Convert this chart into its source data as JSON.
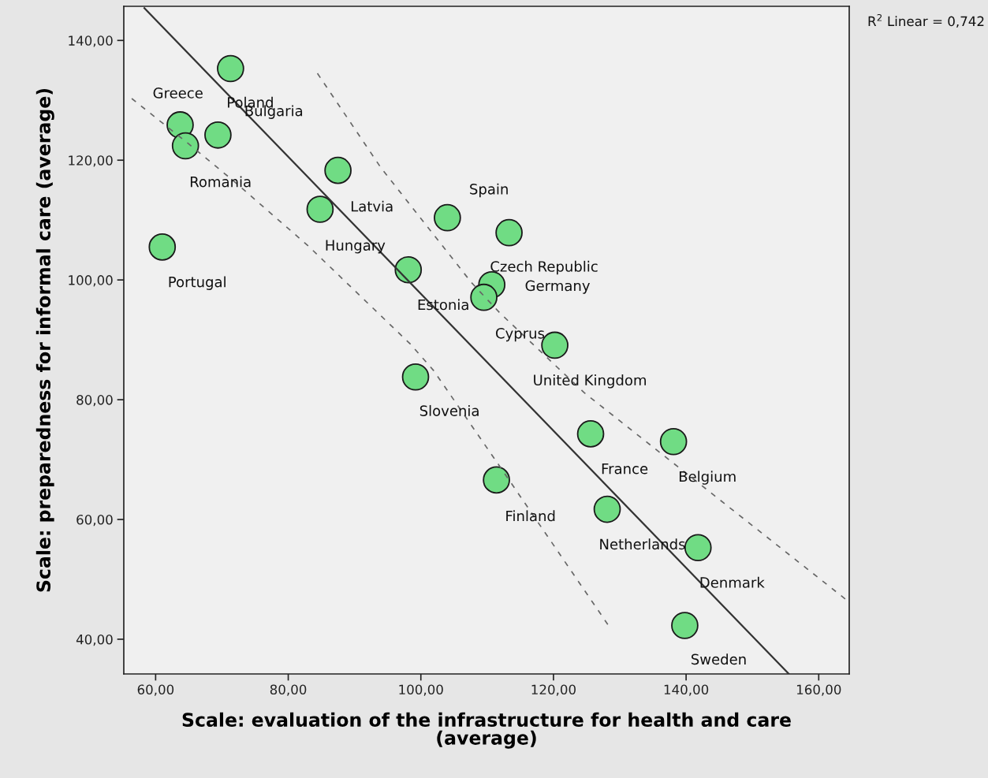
{
  "chart_data": {
    "type": "scatter",
    "xlabel": "Scale: evaluation of the infrastructure for health and care\n(average)",
    "ylabel": "Scale: preparedness for informal care (average)",
    "xlim": [
      55.2,
      164.6
    ],
    "ylim": [
      34.2,
      145.7
    ],
    "xticks": [
      {
        "value": 60,
        "label": "60,00"
      },
      {
        "value": 80,
        "label": "80,00"
      },
      {
        "value": 100,
        "label": "100,00"
      },
      {
        "value": 120,
        "label": "120,00"
      },
      {
        "value": 140,
        "label": "140,00"
      },
      {
        "value": 160,
        "label": "160,00"
      }
    ],
    "yticks": [
      {
        "value": 40,
        "label": "40,00"
      },
      {
        "value": 60,
        "label": "60,00"
      },
      {
        "value": 80,
        "label": "80,00"
      },
      {
        "value": 100,
        "label": "100,00"
      },
      {
        "value": 120,
        "label": "120,00"
      },
      {
        "value": 140,
        "label": "140,00"
      }
    ],
    "grid": false,
    "series": [
      {
        "color": "#70dc84",
        "marker": "circle",
        "x": [
          71.3,
          63.7,
          69.4,
          64.5,
          87.5,
          84.8,
          104.0,
          113.3,
          61.0,
          98.1,
          110.7,
          109.5,
          120.2,
          99.2,
          125.6,
          138.1,
          111.4,
          128.1,
          141.8,
          139.8
        ],
        "values": [
          135.3,
          125.9,
          124.2,
          122.4,
          118.3,
          111.8,
          110.4,
          107.9,
          105.5,
          101.7,
          99.2,
          97.1,
          89.1,
          83.8,
          74.3,
          73.0,
          66.6,
          61.7,
          55.3,
          42.3
        ]
      },
      {
        "type": "line",
        "color": "#333333",
        "line_style": "solid",
        "x": [
          58.3,
          155.5
        ],
        "values": [
          145.4,
          34.2
        ]
      },
      {
        "type": "line",
        "color": "#666666",
        "line_style": "dashed",
        "x": [
          56.4,
          64.9,
          71.9,
          83.0,
          98.5,
          101.9,
          112.0,
          128.6
        ],
        "values": [
          130.3,
          122.8,
          116.4,
          105.7,
          89.2,
          84.9,
          68.7,
          41.8
        ]
      },
      {
        "type": "line",
        "color": "#666666",
        "line_style": "dashed",
        "x": [
          84.4,
          94.0,
          107.6,
          111.9,
          124.6,
          143.0,
          164.6
        ],
        "values": [
          134.5,
          118.7,
          99.6,
          94.5,
          81.2,
          65.1,
          46.2
        ]
      }
    ],
    "annotations": [
      {
        "text": "Poland",
        "x": 71.3,
        "y": 135.3
      },
      {
        "text": "Greece",
        "x": 63.7,
        "y": 125.9
      },
      {
        "text": "Bulgaria",
        "x": 69.4,
        "y": 124.2
      },
      {
        "text": "Romania",
        "x": 64.5,
        "y": 122.4
      },
      {
        "text": "Latvia",
        "x": 87.5,
        "y": 118.3
      },
      {
        "text": "Hungary",
        "x": 84.8,
        "y": 111.8
      },
      {
        "text": "Spain",
        "x": 104.0,
        "y": 110.4
      },
      {
        "text": "Czech Republic",
        "x": 113.3,
        "y": 107.9
      },
      {
        "text": "Portugal",
        "x": 61.0,
        "y": 105.5
      },
      {
        "text": "Estonia",
        "x": 98.1,
        "y": 101.7
      },
      {
        "text": "Germany",
        "x": 110.7,
        "y": 99.2
      },
      {
        "text": "Cyprus",
        "x": 109.5,
        "y": 97.1
      },
      {
        "text": "United Kingdom",
        "x": 120.2,
        "y": 89.1
      },
      {
        "text": "Slovenia",
        "x": 99.2,
        "y": 83.8
      },
      {
        "text": "France",
        "x": 125.6,
        "y": 74.3
      },
      {
        "text": "Belgium",
        "x": 138.1,
        "y": 73.0
      },
      {
        "text": "Finland",
        "x": 111.4,
        "y": 66.6
      },
      {
        "text": "Netherlands",
        "x": 128.1,
        "y": 61.7
      },
      {
        "text": "Denmark",
        "x": 141.8,
        "y": 55.3
      },
      {
        "text": "Sweden",
        "x": 139.8,
        "y": 42.3
      },
      "R$^{2}$ Linear = 0,742"
    ]
  }
}
